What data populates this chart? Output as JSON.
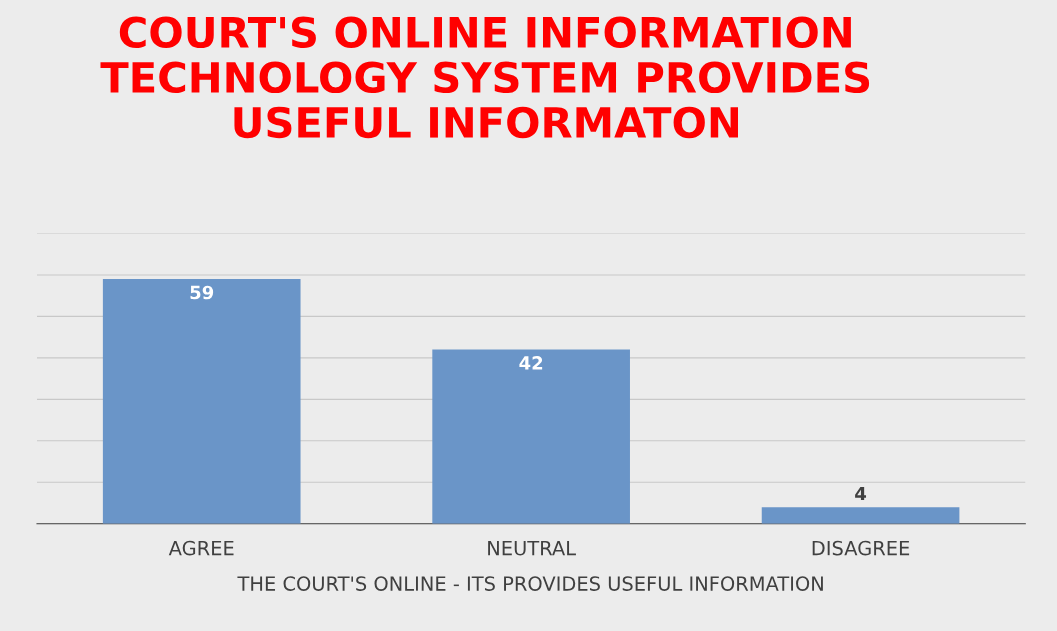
{
  "chart_data": {
    "type": "bar",
    "title": "COURT'S ONLINE INFORMATION\nTECHNOLOGY SYSTEM PROVIDES\nUSEFUL INFORMATON",
    "xlabel": "THE COURT'S ONLINE - ITS PROVIDES USEFUL INFORMATION",
    "categories": [
      "AGREE",
      "NEUTRAL",
      "DISAGREE"
    ],
    "values": [
      59,
      42,
      4
    ],
    "color": "#6a95c8",
    "ylim": [
      0,
      70
    ],
    "yticks": [
      {
        "value": 0,
        "label": null
      },
      {
        "value": 10,
        "label": null
      },
      {
        "value": 20,
        "label": null
      },
      {
        "value": 30,
        "label": null
      },
      {
        "value": 40,
        "label": null
      },
      {
        "value": 50,
        "label": null
      },
      {
        "value": 60,
        "label": null
      },
      {
        "value": 70,
        "label": null
      }
    ],
    "tick_labels": "x",
    "grid": "y",
    "data_labels": true,
    "legend": false
  }
}
